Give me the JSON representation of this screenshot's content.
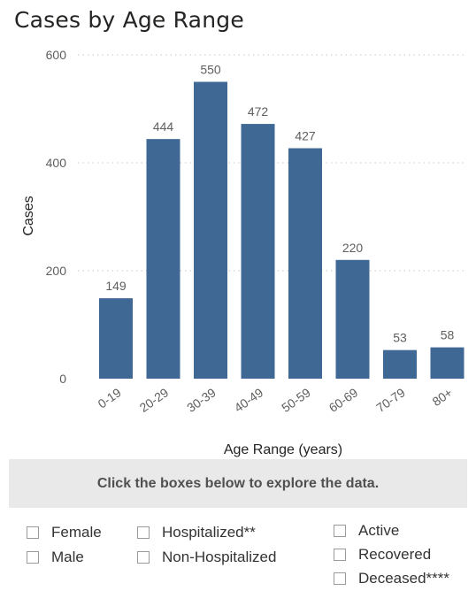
{
  "title": "Cases by Age Range",
  "instruction": "Click the boxes below to explore the data.",
  "filters": {
    "col1": [
      {
        "label": "Female",
        "checked": false
      },
      {
        "label": "Male",
        "checked": false
      }
    ],
    "col2": [
      {
        "label": "Hospitalized**",
        "checked": false
      },
      {
        "label": "Non-Hospitalized",
        "checked": false
      }
    ],
    "col3": [
      {
        "label": "Active",
        "checked": false
      },
      {
        "label": "Recovered",
        "checked": false
      },
      {
        "label": "Deceased****",
        "checked": false
      }
    ]
  },
  "colors": {
    "bar": "#3f6894",
    "text": "#605e5c",
    "grid": "#c8c6c4",
    "panel": "#e9e9e9"
  },
  "chart_data": {
    "type": "bar",
    "categories": [
      "0-19",
      "20-29",
      "30-39",
      "40-49",
      "50-59",
      "60-69",
      "70-79",
      "80+"
    ],
    "values": [
      149,
      444,
      550,
      472,
      427,
      220,
      53,
      58
    ],
    "xlabel": "Age Range (years)",
    "ylabel": "Cases",
    "ylim": [
      0,
      600
    ],
    "yticks": [
      0,
      200,
      400,
      600
    ],
    "grid": "horizontal dotted",
    "legend": "none",
    "data_labels": true
  }
}
